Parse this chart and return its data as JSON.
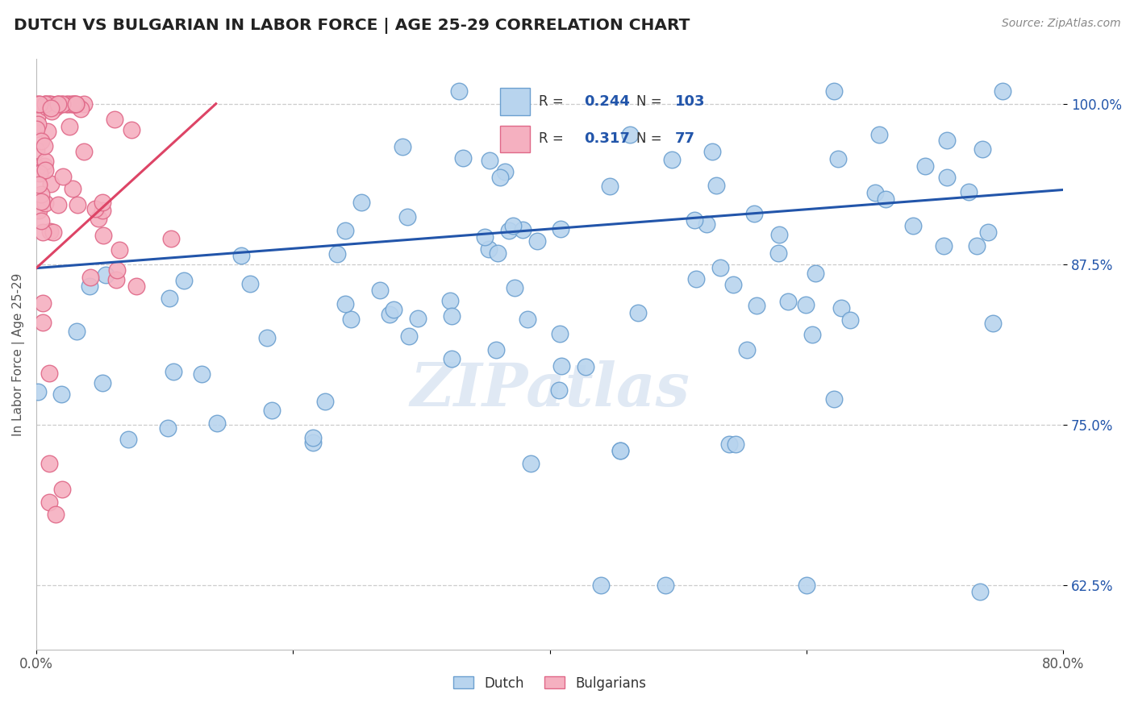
{
  "title": "DUTCH VS BULGARIAN IN LABOR FORCE | AGE 25-29 CORRELATION CHART",
  "source": "Source: ZipAtlas.com",
  "ylabel": "In Labor Force | Age 25-29",
  "xlim": [
    0.0,
    0.8
  ],
  "ylim": [
    0.575,
    1.035
  ],
  "yticks": [
    0.625,
    0.75,
    0.875,
    1.0
  ],
  "dutch_R": 0.244,
  "dutch_N": 103,
  "bulg_R": 0.317,
  "bulg_N": 77,
  "dutch_color": "#b8d4ee",
  "dutch_edge": "#6ca0d0",
  "bulg_color": "#f5b0c0",
  "bulg_edge": "#e06888",
  "trend_dutch_color": "#2255aa",
  "trend_bulg_color": "#dd4466",
  "legend_label_dutch": "Dutch",
  "legend_label_bulg": "Bulgarians",
  "watermark": "ZIPatlas",
  "background_color": "#ffffff",
  "title_color": "#222222",
  "axis_color": "#555555",
  "ytick_color": "#2255aa",
  "grid_color": "#cccccc",
  "dutch_trend_x0": 0.0,
  "dutch_trend_y0": 0.872,
  "dutch_trend_x1": 0.8,
  "dutch_trend_y1": 0.933,
  "bulg_trend_x0": 0.0,
  "bulg_trend_y0": 0.872,
  "bulg_trend_x1": 0.14,
  "bulg_trend_y1": 1.0
}
